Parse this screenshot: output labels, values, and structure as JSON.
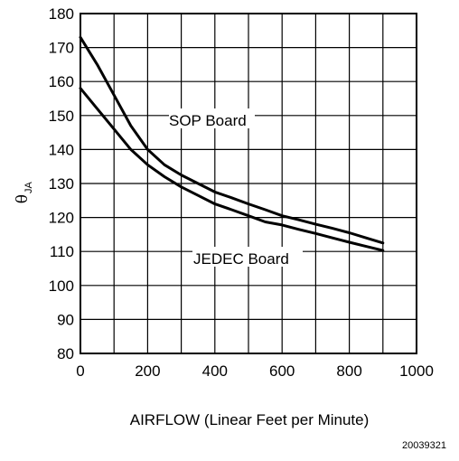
{
  "chart_data": {
    "type": "line",
    "xlabel": "AIRFLOW (Linear Feet per Minute)",
    "ylabel": "θ",
    "ylabel_subscript": "JA",
    "xlim": [
      0,
      1000
    ],
    "ylim": [
      80,
      180
    ],
    "x_ticks": [
      0,
      200,
      400,
      600,
      800,
      1000
    ],
    "y_ticks": [
      80,
      90,
      100,
      110,
      120,
      130,
      140,
      150,
      160,
      170,
      180
    ],
    "x_grid_step": 100,
    "grid": true,
    "annotations": [
      "SOP Board",
      "JEDEC Board"
    ],
    "series": [
      {
        "name": "SOP Board",
        "x": [
          0,
          50,
          100,
          150,
          200,
          250,
          300,
          350,
          400,
          450,
          500,
          550,
          600,
          650,
          700,
          750,
          800,
          850,
          900
        ],
        "values": [
          173,
          165,
          156,
          147,
          140,
          135.5,
          132.5,
          130,
          127.5,
          125.8,
          124,
          122.3,
          120.5,
          119.3,
          118,
          116.8,
          115.5,
          114,
          112.5
        ]
      },
      {
        "name": "JEDEC Board",
        "x": [
          0,
          50,
          100,
          150,
          200,
          250,
          300,
          350,
          400,
          450,
          500,
          550,
          600,
          650,
          700,
          750,
          800,
          850,
          900
        ],
        "values": [
          158,
          152,
          146,
          140,
          135.5,
          132,
          129,
          126.5,
          124,
          122.3,
          120.5,
          118.7,
          117.8,
          116.5,
          115.3,
          114,
          112.7,
          111.5,
          110.3
        ]
      }
    ]
  },
  "figure_code": "20039321"
}
